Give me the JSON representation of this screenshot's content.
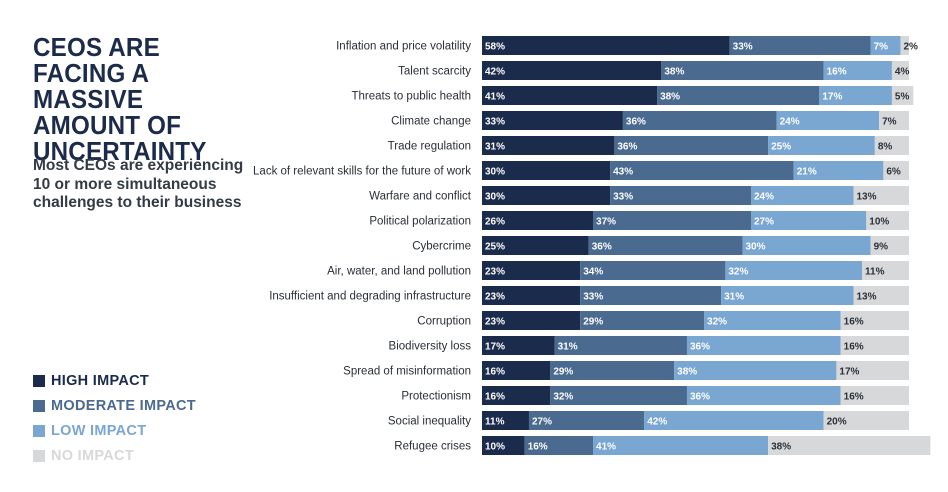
{
  "title": "CEOS ARE FACING A MASSIVE AMOUNT OF UNCERTAINTY",
  "subtitle": "Most CEOs are experiencing 10 or more simultaneous challenges to their business",
  "colors": {
    "high": "#1b2b4b",
    "moderate": "#4a6a8f",
    "low": "#7aa6d2",
    "none": "#d7d8da"
  },
  "legend": [
    {
      "label": "HIGH IMPACT",
      "color": "#1b2b4b"
    },
    {
      "label": "MODERATE IMPACT",
      "color": "#4a6a8f"
    },
    {
      "label": "LOW IMPACT",
      "color": "#7aa6d2"
    },
    {
      "label": "NO IMPACT",
      "color": "#d7d8da"
    }
  ],
  "chart_data": {
    "type": "bar",
    "orientation": "horizontal",
    "stacked": true,
    "categories": [
      "Inflation and price volatility",
      "Talent scarcity",
      "Threats to public health",
      "Climate change",
      "Trade regulation",
      "Lack of relevant skills for the future of work",
      "Warfare and conflict",
      "Political polarization",
      "Cybercrime",
      "Air, water, and land pollution",
      "Insufficient and degrading infrastructure",
      "Corruption",
      "Biodiversity loss",
      "Spread of misinformation",
      "Protectionism",
      "Social inequality",
      "Refugee crises"
    ],
    "series": [
      {
        "name": "HIGH IMPACT",
        "values": [
          58,
          42,
          41,
          33,
          31,
          30,
          30,
          26,
          25,
          23,
          23,
          23,
          17,
          16,
          16,
          11,
          10
        ]
      },
      {
        "name": "MODERATE IMPACT",
        "values": [
          33,
          38,
          38,
          36,
          36,
          43,
          33,
          37,
          36,
          34,
          33,
          29,
          31,
          29,
          32,
          27,
          16
        ]
      },
      {
        "name": "LOW IMPACT",
        "values": [
          7,
          16,
          17,
          24,
          25,
          21,
          24,
          27,
          30,
          32,
          31,
          32,
          36,
          38,
          36,
          42,
          41
        ]
      },
      {
        "name": "NO IMPACT",
        "values": [
          2,
          4,
          5,
          7,
          8,
          6,
          13,
          10,
          9,
          11,
          13,
          16,
          16,
          17,
          16,
          20,
          38
        ]
      }
    ],
    "value_suffix": "%"
  }
}
